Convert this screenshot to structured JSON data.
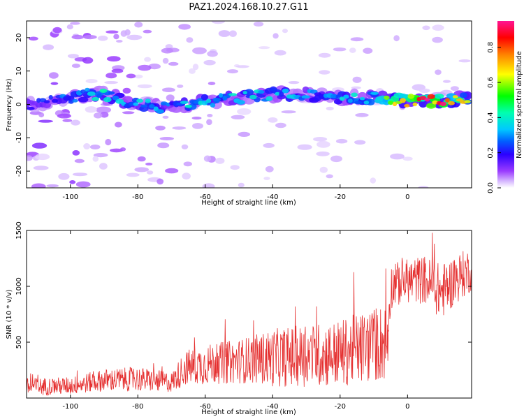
{
  "title": "PAZ1.2024.168.10.27.G11",
  "colors": {
    "snr_line": "#e53030",
    "colormap": [
      "#ffffff",
      "#d6b8ff",
      "#9b3cff",
      "#2b00ff",
      "#00b0ff",
      "#00ffb0",
      "#00ff00",
      "#ffff00",
      "#ff8000",
      "#ff0000",
      "#ff1493"
    ]
  },
  "chart_data": [
    {
      "type": "heatmap",
      "title": "PAZ1.2024.168.10.27.G11",
      "xlabel": "Height of straight line (km)",
      "ylabel": "Frequency (Hz)",
      "xlim": [
        -113,
        19
      ],
      "ylim": [
        -25,
        25
      ],
      "x_ticks": [
        -100,
        -80,
        -60,
        -40,
        -20,
        0
      ],
      "y_ticks": [
        -20,
        -10,
        0,
        10,
        20
      ],
      "colorbar": {
        "label": "Normalized spectral amplitude",
        "ticks": [
          0.0,
          0.2,
          0.4,
          0.6,
          0.8
        ],
        "range": [
          0.0,
          0.95
        ]
      },
      "dominant_band": {
        "description_x": [
          -110,
          -95,
          -90,
          -80,
          -70,
          -60,
          -50,
          -40,
          -30,
          -20,
          -10,
          0,
          10,
          19
        ],
        "center_freq_hz": [
          0,
          3,
          3,
          0,
          -1,
          1,
          2,
          3,
          3,
          2,
          2,
          1,
          1,
          2
        ],
        "peak_amplitude": [
          0.2,
          0.35,
          0.4,
          0.35,
          0.3,
          0.45,
          0.35,
          0.35,
          0.3,
          0.35,
          0.45,
          0.85,
          0.85,
          0.6
        ]
      }
    },
    {
      "type": "line",
      "title": "",
      "xlabel": "Height of straight line (km)",
      "ylabel": "SNR (10 * v/v)",
      "xlim": [
        -113,
        19
      ],
      "ylim": [
        0,
        1500
      ],
      "x_ticks": [
        -100,
        -80,
        -60,
        -40,
        -20,
        0
      ],
      "y_ticks": [
        500,
        1000,
        1500
      ],
      "trend": {
        "x": [
          -113,
          -100,
          -90,
          -80,
          -70,
          -66,
          -60,
          -50,
          -45,
          -40,
          -30,
          -20,
          -10,
          -6,
          -5,
          0,
          5,
          10,
          15,
          19
        ],
        "y_mean": [
          100,
          110,
          160,
          170,
          140,
          270,
          300,
          330,
          350,
          360,
          380,
          400,
          480,
          500,
          1000,
          1050,
          1060,
          950,
          1080,
          1150
        ],
        "y_spread": [
          80,
          80,
          100,
          110,
          90,
          160,
          180,
          200,
          220,
          260,
          280,
          300,
          340,
          360,
          200,
          200,
          220,
          250,
          220,
          200
        ]
      }
    }
  ]
}
